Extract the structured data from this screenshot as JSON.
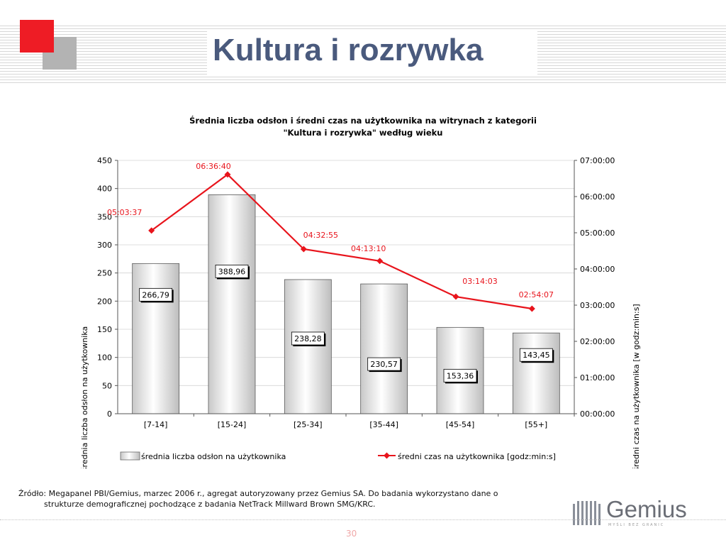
{
  "slide": {
    "title": "Kultura i rozrywka",
    "page_number": "30",
    "source_line1": "Źródło: Megapanel PBI/Gemius, marzec 2006 r., agregat autoryzowany przez Gemius SA. Do badania wykorzystano dane o",
    "source_line2": "strukturze demograficznej pochodzące z badania NetTrack Millward Brown SMG/KRC.",
    "brand": "Gemius",
    "brand_tagline": "MYŚLI BEZ GRANIC",
    "accent_red": "#ee1c25",
    "accent_grey": "#b3b3b3",
    "title_color": "#4a5a7d"
  },
  "chart_data": {
    "type": "bar",
    "title_line1": "Średnia liczba odsłon i średni czas na użytkownika na witrynach z kategorii",
    "title_line2": "\"Kultura i rozrywka\" według wieku",
    "categories": [
      "[7-14]",
      "[15-24]",
      "[25-34]",
      "[35-44]",
      "[45-54]",
      "[55+]"
    ],
    "ylabel": "średnia liczba odsłon na użytkownika",
    "y2label": "średni czas na użytkownika [w godz:min:s]",
    "ylim": [
      0,
      450
    ],
    "yticks": [
      "0",
      "50",
      "100",
      "150",
      "200",
      "250",
      "300",
      "350",
      "400",
      "450"
    ],
    "y2ticks": [
      "00:00:00",
      "01:00:00",
      "02:00:00",
      "03:00:00",
      "04:00:00",
      "05:00:00",
      "06:00:00",
      "07:00:00"
    ],
    "y2lim_hours": [
      0,
      7
    ],
    "series": [
      {
        "name": "średnia liczba odsłon na użytkownika",
        "type": "bar",
        "values": [
          266.79,
          388.96,
          238.28,
          230.57,
          153.36,
          143.45
        ],
        "labels": [
          "266,79",
          "388,96",
          "238,28",
          "230,57",
          "153,36",
          "143,45"
        ]
      },
      {
        "name": "średni czas na użytkownika [godz:min:s]",
        "type": "line",
        "axis": "right",
        "color": "#e8141c",
        "values_hours": [
          5.0603,
          6.6111,
          4.5486,
          4.2194,
          3.2342,
          2.9019
        ],
        "labels": [
          "05:03:37",
          "06:36:40",
          "04:32:55",
          "04:13:10",
          "03:14:03",
          "02:54:07"
        ]
      }
    ],
    "grid": true,
    "legend": "bottom"
  }
}
